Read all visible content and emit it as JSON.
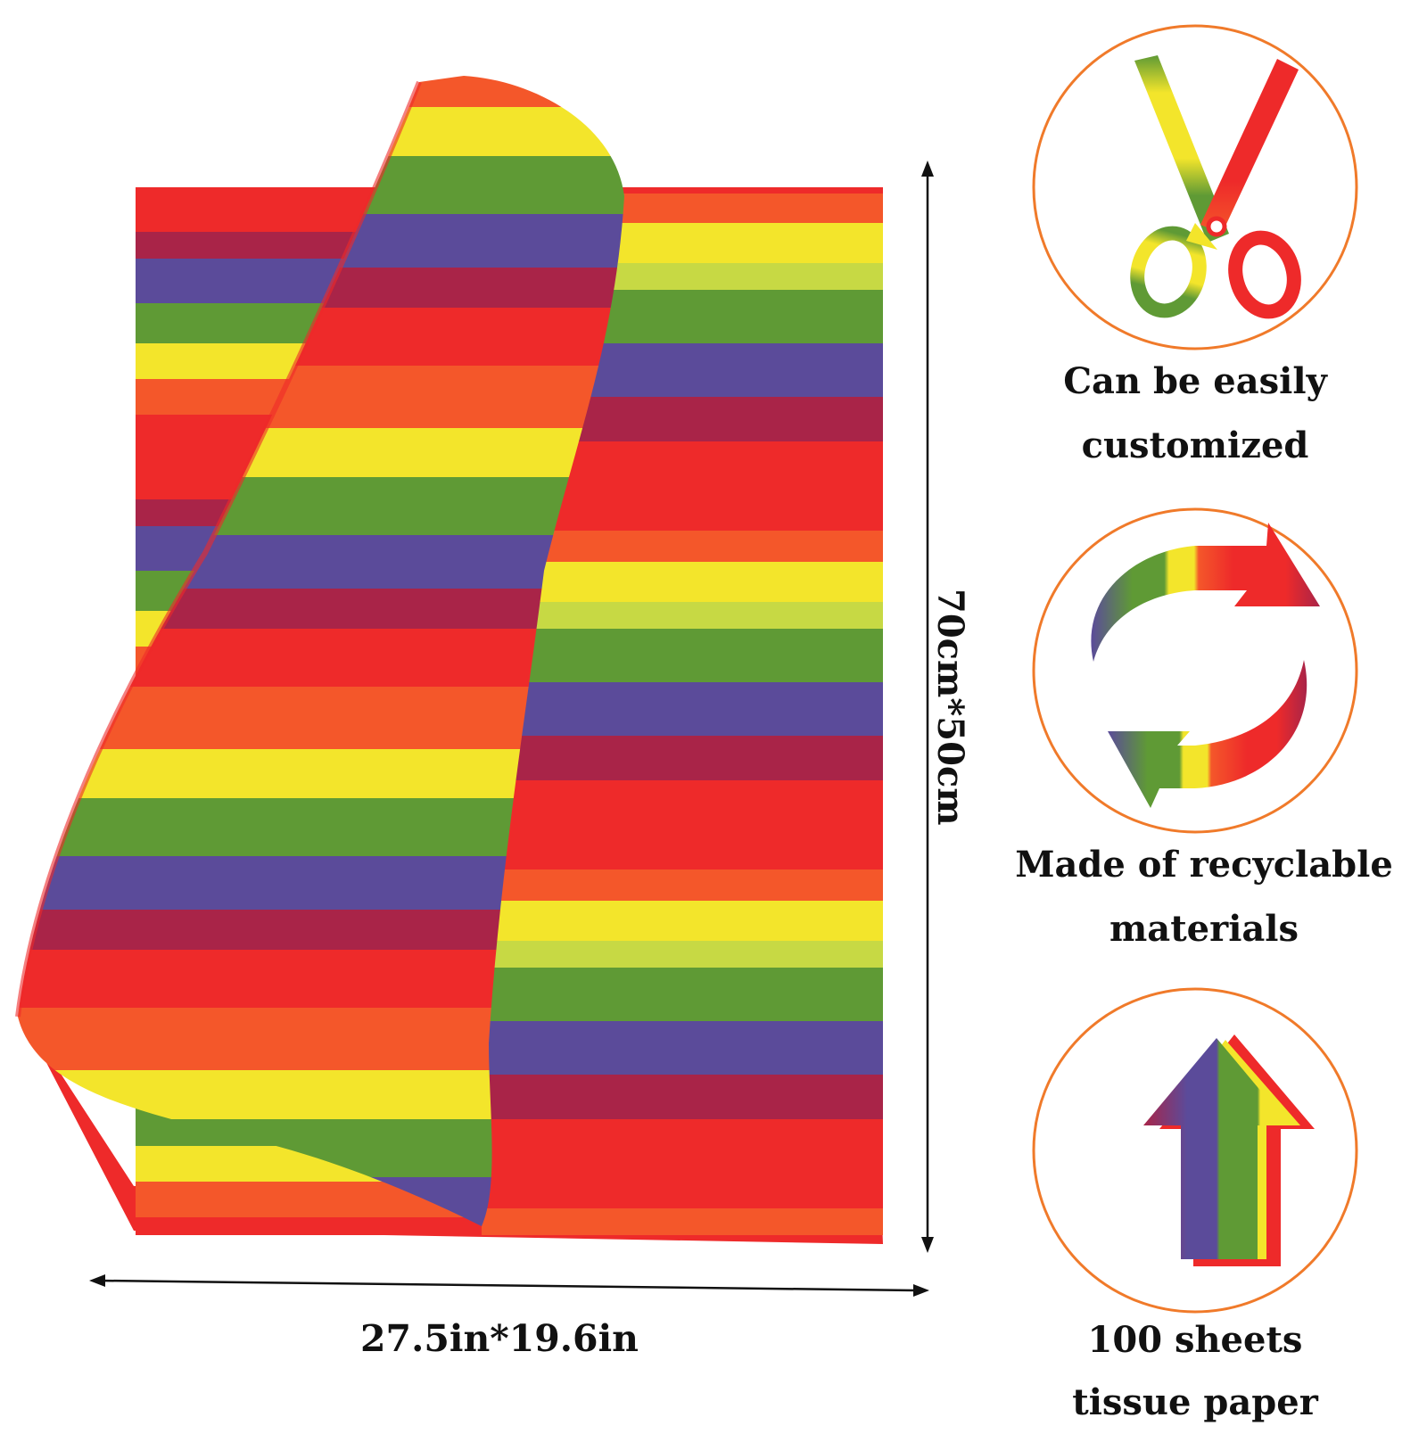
{
  "colors": {
    "ring": "#f07a2a",
    "red": "#ee2a2a",
    "orange": "#f4572a",
    "yellow": "#f3e52b",
    "green": "#5f9a35",
    "purple": "#5b4b9a",
    "maroon": "#a92448",
    "text": "#111111"
  },
  "dimensions": {
    "width_text": "27.5in*19.6in",
    "height_text": "70cm*50cm"
  },
  "features": [
    {
      "icon": "scissors-icon",
      "line1": "Can be easily",
      "line2": "customized"
    },
    {
      "icon": "recycle-arrows-icon",
      "line1": "Made of recyclable",
      "line2": "materials"
    },
    {
      "icon": "up-arrow-icon",
      "line1": "100 sheets",
      "line2": "tissue paper"
    }
  ]
}
